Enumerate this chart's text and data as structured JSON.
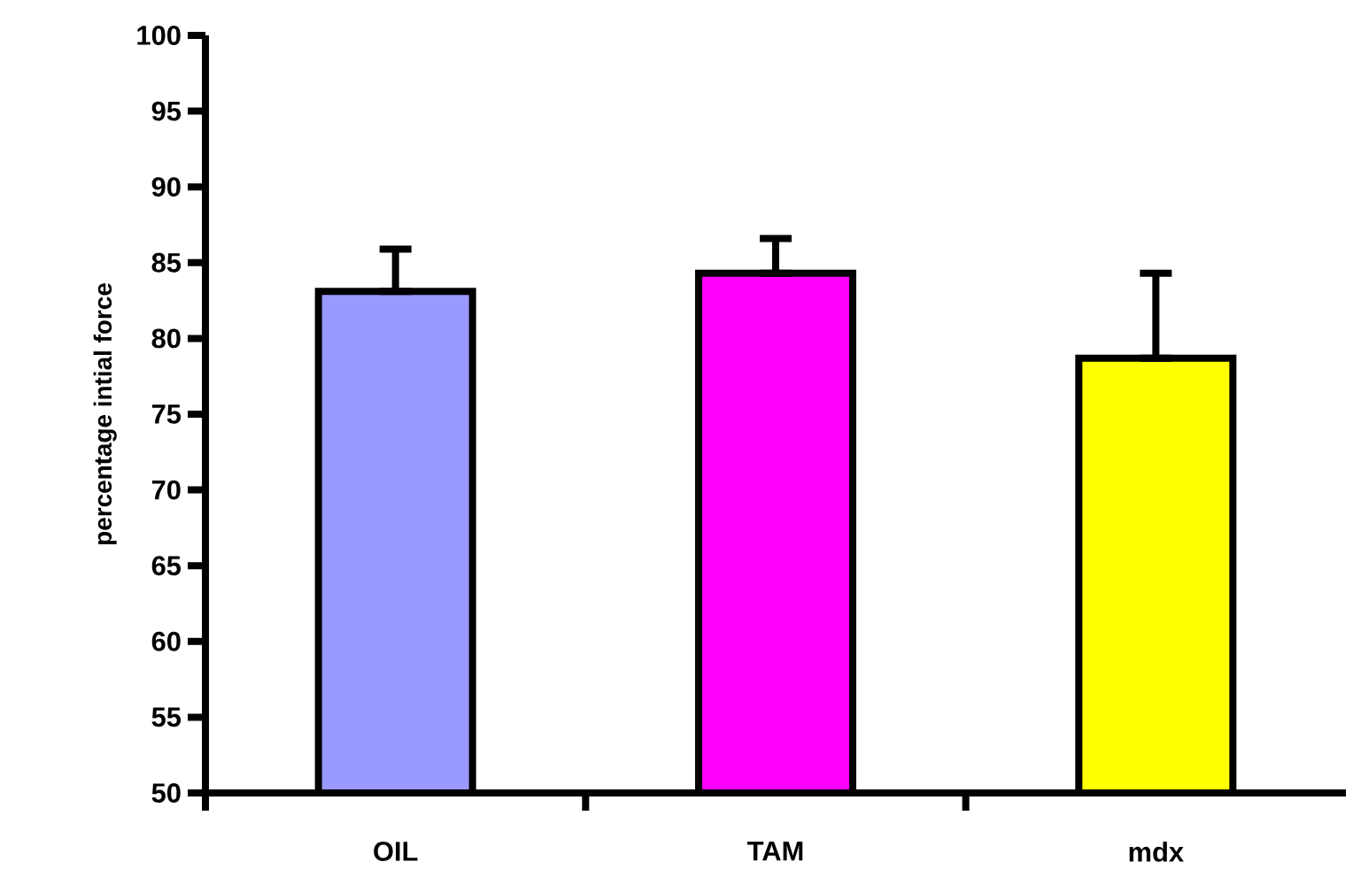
{
  "chart_data": {
    "type": "bar",
    "ylabel": "percentage intial force",
    "categories": [
      "OIL",
      "TAM",
      "mdx"
    ],
    "values": [
      83.1,
      84.3,
      78.7
    ],
    "colors": [
      "#9999ff",
      "#ff00ff",
      "#ffff00"
    ],
    "errors": [
      [
        83.1,
        85.9
      ],
      [
        84.3,
        86.6
      ],
      [
        78.7,
        84.3
      ]
    ],
    "ylim": [
      50,
      100
    ],
    "yticks": [
      50,
      55,
      60,
      65,
      70,
      75,
      80,
      85,
      90,
      95,
      100
    ],
    "grid": false
  }
}
